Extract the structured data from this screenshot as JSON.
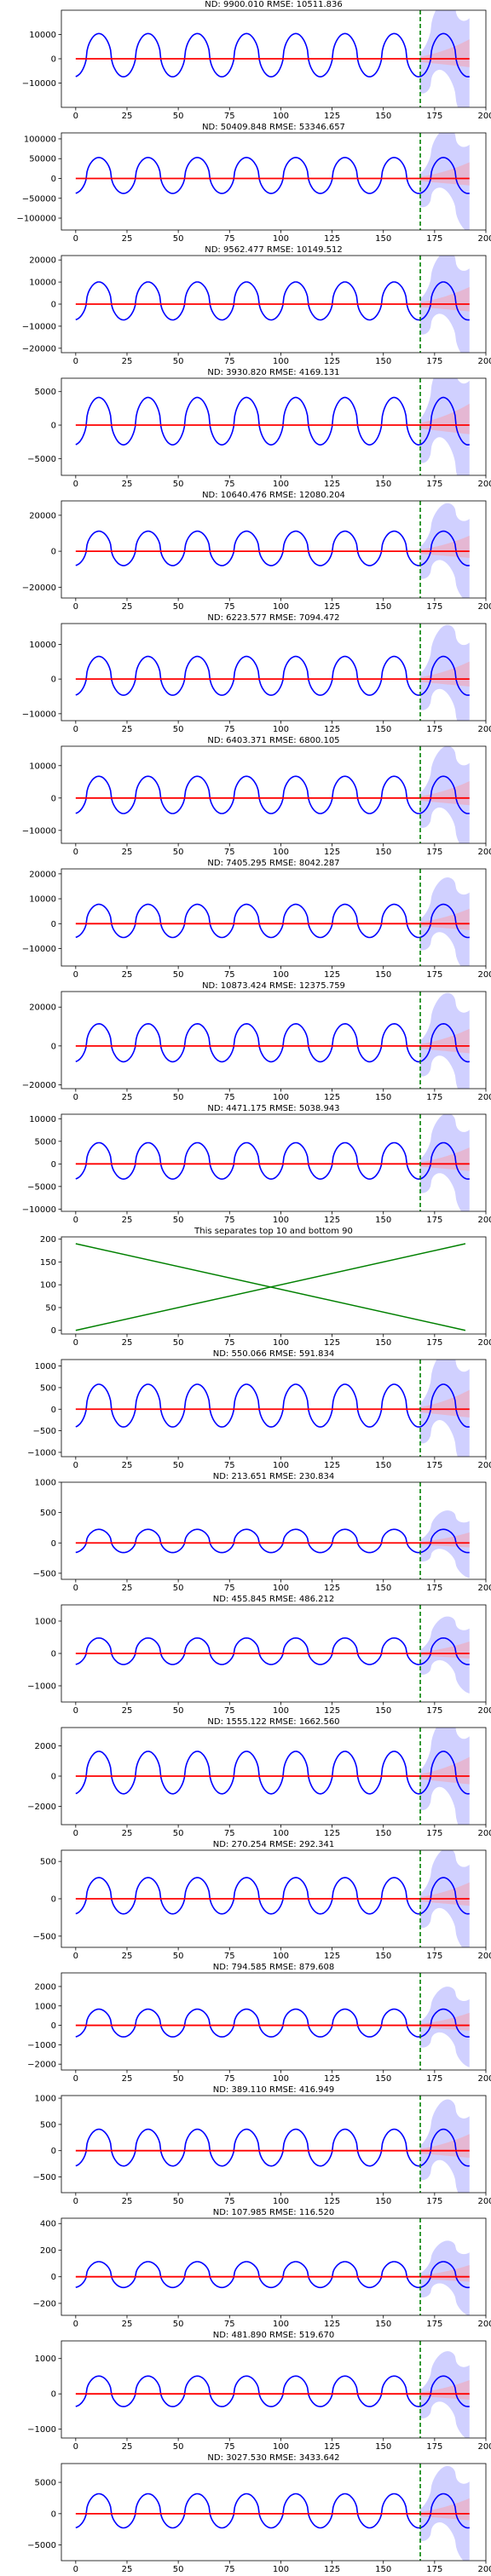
{
  "chart_data": [
    {
      "type": "line",
      "title": "ND:  9900.010 RMSE:  10511.836",
      "ylim": [
        -20000,
        20000
      ],
      "yticks": [
        -10000,
        0,
        10000
      ],
      "ytick_labels": [
        "−10000",
        "0",
        "10000"
      ],
      "amp": 9900,
      "band": 1.6
    },
    {
      "type": "line",
      "title": "ND:  50409.848 RMSE:  53346.657",
      "ylim": [
        -130000,
        115000
      ],
      "yticks": [
        -100000,
        -50000,
        0,
        50000,
        100000
      ],
      "ytick_labels": [
        "−100000",
        "−50000",
        "0",
        "50000",
        "100000"
      ],
      "amp": 50400,
      "band": 1.6
    },
    {
      "type": "line",
      "title": "ND:  9562.477 RMSE:  10149.512",
      "ylim": [
        -22000,
        22000
      ],
      "yticks": [
        -20000,
        -10000,
        0,
        10000,
        20000
      ],
      "ytick_labels": [
        "−20000",
        "−10000",
        "0",
        "10000",
        "20000"
      ],
      "amp": 9560,
      "band": 1.6
    },
    {
      "type": "line",
      "title": "ND:  3930.820 RMSE:  4169.131",
      "ylim": [
        -7500,
        7000
      ],
      "yticks": [
        -5000,
        0,
        5000
      ],
      "ytick_labels": [
        "−5000",
        "0",
        "5000"
      ],
      "amp": 3930,
      "band": 1.6
    },
    {
      "type": "line",
      "title": "ND:  10640.476 RMSE:  12080.204",
      "ylim": [
        -26000,
        28000
      ],
      "yticks": [
        -20000,
        0,
        20000
      ],
      "ytick_labels": [
        "−20000",
        "0",
        "20000"
      ],
      "amp": 10640,
      "band": 1.6
    },
    {
      "type": "line",
      "title": "ND:  6223.577 RMSE:  7094.472",
      "ylim": [
        -12000,
        16000
      ],
      "yticks": [
        -10000,
        0,
        10000
      ],
      "ytick_labels": [
        "−10000",
        "0",
        "10000"
      ],
      "amp": 6220,
      "band": 1.6
    },
    {
      "type": "line",
      "title": "ND:  6403.371 RMSE:  6800.105",
      "ylim": [
        -14000,
        16000
      ],
      "yticks": [
        -10000,
        0,
        10000
      ],
      "ytick_labels": [
        "−10000",
        "0",
        "10000"
      ],
      "amp": 6400,
      "band": 1.6
    },
    {
      "type": "line",
      "title": "ND:  7405.295 RMSE:  8042.287",
      "ylim": [
        -17000,
        22000
      ],
      "yticks": [
        -10000,
        0,
        10000,
        20000
      ],
      "ytick_labels": [
        "−10000",
        "0",
        "10000",
        "20000"
      ],
      "amp": 7400,
      "band": 1.6
    },
    {
      "type": "line",
      "title": "ND:  10873.424 RMSE:  12375.759",
      "ylim": [
        -22000,
        28000
      ],
      "yticks": [
        -20000,
        0,
        20000
      ],
      "ytick_labels": [
        "−20000",
        "0",
        "20000"
      ],
      "amp": 10870,
      "band": 1.6
    },
    {
      "type": "line",
      "title": "ND:  4471.175 RMSE:  5038.943",
      "ylim": [
        -10500,
        11000
      ],
      "yticks": [
        -10000,
        -5000,
        0,
        5000,
        10000
      ],
      "ytick_labels": [
        "−10000",
        "−5000",
        "0",
        "5000",
        "10000"
      ],
      "amp": 4470,
      "band": 1.6
    },
    {
      "type": "cross",
      "title": "This separates top 10 and bottom 90",
      "ylim": [
        -8,
        205
      ],
      "yticks": [
        0,
        50,
        100,
        150,
        200
      ],
      "ytick_labels": [
        "0",
        "50",
        "100",
        "150",
        "200"
      ]
    },
    {
      "type": "line",
      "title": "ND:  550.066 RMSE:  591.834",
      "ylim": [
        -1100,
        1150
      ],
      "yticks": [
        -1000,
        -500,
        0,
        500,
        1000
      ],
      "ytick_labels": [
        "−1000",
        "−500",
        "0",
        "500",
        "1000"
      ],
      "amp": 550,
      "band": 1.6
    },
    {
      "type": "line",
      "title": "ND:  213.651 RMSE:  230.834",
      "ylim": [
        -600,
        1000
      ],
      "yticks": [
        -500,
        0,
        500,
        1000
      ],
      "ytick_labels": [
        "−500",
        "0",
        "500",
        "1000"
      ],
      "amp": 213,
      "band": 1.6
    },
    {
      "type": "line",
      "title": "ND:  455.845 RMSE:  486.212",
      "ylim": [
        -1500,
        1500
      ],
      "yticks": [
        -1000,
        0,
        1000
      ],
      "ytick_labels": [
        "−1000",
        "0",
        "1000"
      ],
      "amp": 455,
      "band": 1.6
    },
    {
      "type": "line",
      "title": "ND:  1555.122 RMSE:  1662.560",
      "ylim": [
        -3200,
        3200
      ],
      "yticks": [
        -2000,
        0,
        2000
      ],
      "ytick_labels": [
        "−2000",
        "0",
        "2000"
      ],
      "amp": 1555,
      "band": 1.6
    },
    {
      "type": "line",
      "title": "ND:  270.254 RMSE:  292.341",
      "ylim": [
        -650,
        650
      ],
      "yticks": [
        -500,
        0,
        500
      ],
      "ytick_labels": [
        "−500",
        "0",
        "500"
      ],
      "amp": 270,
      "band": 1.6
    },
    {
      "type": "line",
      "title": "ND:  794.585 RMSE:  879.608",
      "ylim": [
        -2300,
        2700
      ],
      "yticks": [
        -2000,
        -1000,
        0,
        1000,
        2000
      ],
      "ytick_labels": [
        "−2000",
        "−1000",
        "0",
        "1000",
        "2000"
      ],
      "amp": 794,
      "band": 1.6
    },
    {
      "type": "line",
      "title": "ND:  389.110 RMSE:  416.949",
      "ylim": [
        -800,
        1050
      ],
      "yticks": [
        -500,
        0,
        500,
        1000
      ],
      "ytick_labels": [
        "−500",
        "0",
        "500",
        "1000"
      ],
      "amp": 389,
      "band": 1.6
    },
    {
      "type": "line",
      "title": "ND:  107.985 RMSE:  116.520",
      "ylim": [
        -290,
        440
      ],
      "yticks": [
        -200,
        0,
        200,
        400
      ],
      "ytick_labels": [
        "−200",
        "0",
        "200",
        "400"
      ],
      "amp": 108,
      "band": 1.6
    },
    {
      "type": "line",
      "title": "ND:  481.890 RMSE:  519.670",
      "ylim": [
        -1250,
        1500
      ],
      "yticks": [
        -1000,
        0,
        1000
      ],
      "ytick_labels": [
        "−1000",
        "0",
        "1000"
      ],
      "amp": 481,
      "band": 1.6
    },
    {
      "type": "line",
      "title": "ND:  3027.530 RMSE:  3433.642",
      "ylim": [
        -7500,
        8000
      ],
      "yticks": [
        -5000,
        0,
        5000
      ],
      "ytick_labels": [
        "−5000",
        "0",
        "5000"
      ],
      "amp": 3027,
      "band": 1.6
    }
  ],
  "shared": {
    "xlim": [
      -7,
      200
    ],
    "xticks": [
      0,
      25,
      50,
      75,
      100,
      125,
      150,
      175,
      200
    ],
    "xtick_labels": [
      "0",
      "25",
      "50",
      "75",
      "100",
      "125",
      "150",
      "175",
      "200"
    ],
    "history_end_x": 168,
    "forecast_end_x": 192,
    "period": 24,
    "vline_x": 168,
    "colors": {
      "target": "#0000ff",
      "forecast": "#ff0000",
      "band": "#c8c8ff",
      "band_inner": "#eab0c8",
      "vline": "#008000",
      "cross": "#008000"
    }
  }
}
